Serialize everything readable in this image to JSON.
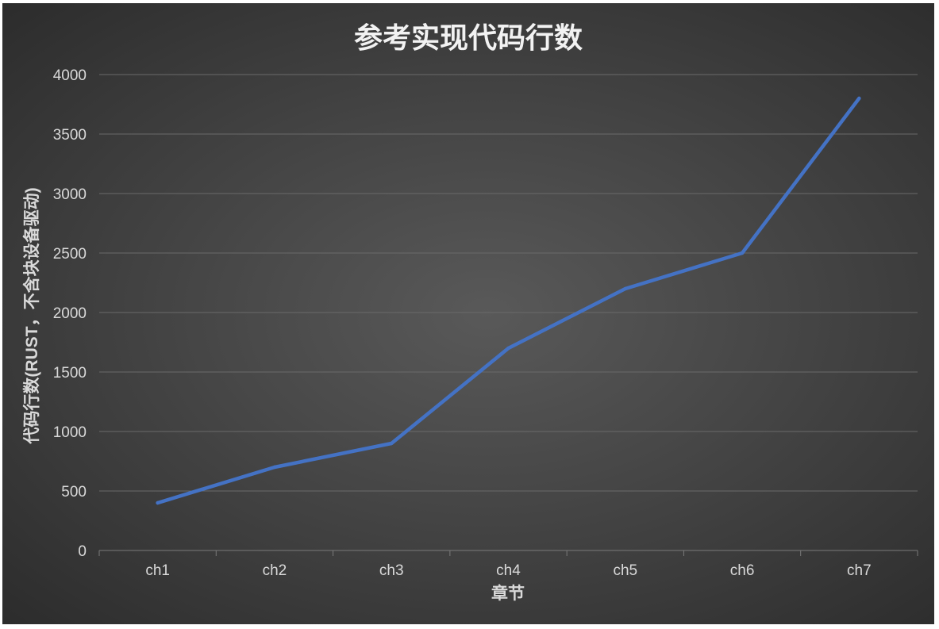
{
  "chart_data": {
    "type": "line",
    "title": "参考实现代码行数",
    "xlabel": "章节",
    "ylabel": "代码行数(RUST，不含块设备驱动)",
    "categories": [
      "ch1",
      "ch2",
      "ch3",
      "ch4",
      "ch5",
      "ch6",
      "ch7"
    ],
    "series": [
      {
        "values": [
          400,
          700,
          900,
          1700,
          2200,
          2500,
          3800
        ]
      }
    ],
    "ylim": [
      0,
      4000
    ],
    "yticks": [
      0,
      500,
      1000,
      1500,
      2000,
      2500,
      3000,
      3500,
      4000
    ],
    "grid": true,
    "legend": "none",
    "colors": {
      "series": "#4472c4"
    }
  }
}
